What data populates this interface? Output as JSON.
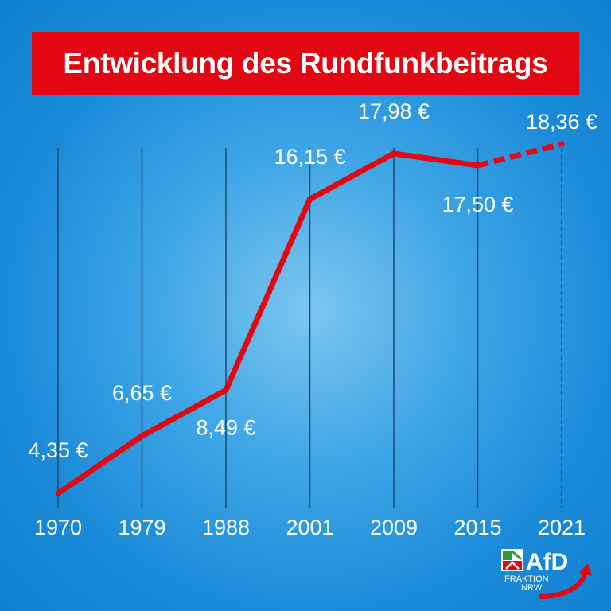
{
  "title": "Entwicklung des Rundfunkbeitrags",
  "colors": {
    "line": "#e30613",
    "banner": "#e30613",
    "gridline": "#1f4f7a",
    "text": "#ffffff"
  },
  "chart_data": {
    "type": "line",
    "title": "Entwicklung des Rundfunkbeitrags",
    "categories": [
      "1970",
      "1979",
      "1988",
      "2001",
      "2009",
      "2015",
      "2021"
    ],
    "values": [
      4.35,
      6.65,
      8.49,
      16.15,
      17.98,
      17.5,
      18.36
    ],
    "value_labels": [
      "4,35 €",
      "6,65 €",
      "8,49 €",
      "16,15 €",
      "17,98 €",
      "17,50 €",
      "18,36 €"
    ],
    "projected_from_index": 5,
    "ylim": [
      4.35,
      18.36
    ],
    "grid": true,
    "xlabel": "",
    "ylabel": ""
  },
  "logo": {
    "brand": "AfD",
    "line1": "FRAKTION",
    "line2": "NRW",
    "icon": "nrw-coat-of-arms-icon"
  }
}
